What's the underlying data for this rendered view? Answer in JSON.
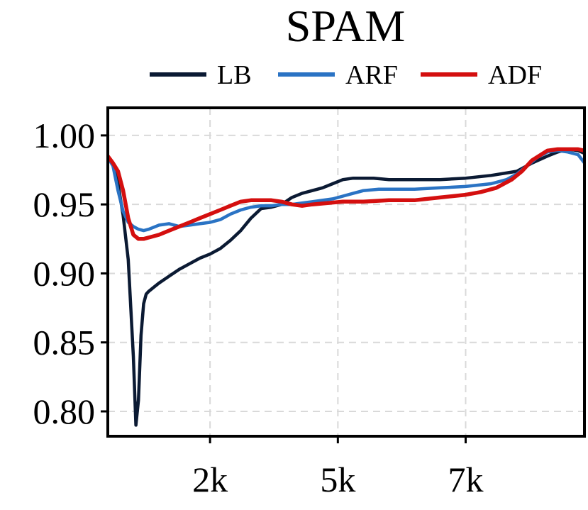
{
  "chart_data": {
    "type": "line",
    "title": "SPAM",
    "xlabel": "",
    "ylabel": "",
    "xlim": [
      0,
      9324
    ],
    "ylim": [
      0.782,
      1.02
    ],
    "xticks": [
      2000,
      4500,
      7000
    ],
    "xtick_labels": [
      "2k",
      "5k",
      "7k"
    ],
    "yticks": [
      0.8,
      0.85,
      0.9,
      0.95,
      1.0
    ],
    "ytick_labels": [
      "0.80",
      "0.85",
      "0.90",
      "0.95",
      "1.00"
    ],
    "grid": true,
    "legend_position": "top",
    "series": [
      {
        "name": "LB",
        "color": "#0b1a33",
        "x": [
          0,
          100,
          200,
          300,
          400,
          450,
          500,
          550,
          600,
          650,
          700,
          750,
          800,
          900,
          1000,
          1200,
          1400,
          1600,
          1800,
          2000,
          2200,
          2400,
          2600,
          2800,
          3000,
          3200,
          3400,
          3600,
          3800,
          4000,
          4200,
          4400,
          4600,
          4800,
          5000,
          5200,
          5500,
          6000,
          6500,
          7000,
          7500,
          8000,
          8300,
          8600,
          8800,
          9000,
          9200,
          9324
        ],
        "y": [
          0.985,
          0.98,
          0.965,
          0.942,
          0.91,
          0.875,
          0.84,
          0.79,
          0.808,
          0.855,
          0.878,
          0.885,
          0.887,
          0.89,
          0.893,
          0.898,
          0.903,
          0.907,
          0.911,
          0.914,
          0.918,
          0.924,
          0.931,
          0.94,
          0.947,
          0.948,
          0.95,
          0.955,
          0.958,
          0.96,
          0.962,
          0.965,
          0.968,
          0.969,
          0.969,
          0.969,
          0.968,
          0.968,
          0.968,
          0.969,
          0.971,
          0.974,
          0.98,
          0.985,
          0.988,
          0.99,
          0.989,
          0.987
        ]
      },
      {
        "name": "ARF",
        "color": "#2a73c4",
        "x": [
          0,
          100,
          200,
          300,
          400,
          500,
          600,
          700,
          800,
          1000,
          1200,
          1400,
          1600,
          1800,
          2000,
          2200,
          2400,
          2600,
          2800,
          3000,
          3200,
          3400,
          3600,
          3800,
          4000,
          4200,
          4400,
          4600,
          4800,
          5000,
          5300,
          5600,
          6000,
          6500,
          7000,
          7500,
          7800,
          8000,
          8200,
          8400,
          8600,
          8800,
          9000,
          9200,
          9324
        ],
        "y": [
          0.984,
          0.978,
          0.96,
          0.945,
          0.937,
          0.934,
          0.932,
          0.931,
          0.932,
          0.935,
          0.936,
          0.934,
          0.935,
          0.936,
          0.937,
          0.939,
          0.943,
          0.946,
          0.948,
          0.949,
          0.949,
          0.95,
          0.95,
          0.951,
          0.952,
          0.953,
          0.954,
          0.956,
          0.958,
          0.96,
          0.961,
          0.961,
          0.961,
          0.962,
          0.963,
          0.965,
          0.968,
          0.972,
          0.978,
          0.984,
          0.988,
          0.989,
          0.988,
          0.986,
          0.98
        ]
      },
      {
        "name": "ADF",
        "color": "#d40f0f",
        "x": [
          0,
          100,
          200,
          300,
          400,
          500,
          600,
          700,
          800,
          1000,
          1200,
          1400,
          1600,
          1800,
          2000,
          2200,
          2400,
          2600,
          2800,
          3000,
          3200,
          3400,
          3600,
          3800,
          4000,
          4300,
          4600,
          5000,
          5500,
          6000,
          6500,
          7000,
          7300,
          7600,
          7900,
          8100,
          8300,
          8600,
          8800,
          9000,
          9200,
          9324
        ],
        "y": [
          0.985,
          0.98,
          0.974,
          0.96,
          0.94,
          0.928,
          0.925,
          0.925,
          0.926,
          0.928,
          0.931,
          0.934,
          0.937,
          0.94,
          0.943,
          0.946,
          0.949,
          0.952,
          0.953,
          0.953,
          0.953,
          0.952,
          0.95,
          0.949,
          0.95,
          0.951,
          0.952,
          0.952,
          0.953,
          0.953,
          0.955,
          0.957,
          0.959,
          0.962,
          0.968,
          0.974,
          0.982,
          0.989,
          0.99,
          0.99,
          0.99,
          0.989
        ]
      }
    ]
  }
}
